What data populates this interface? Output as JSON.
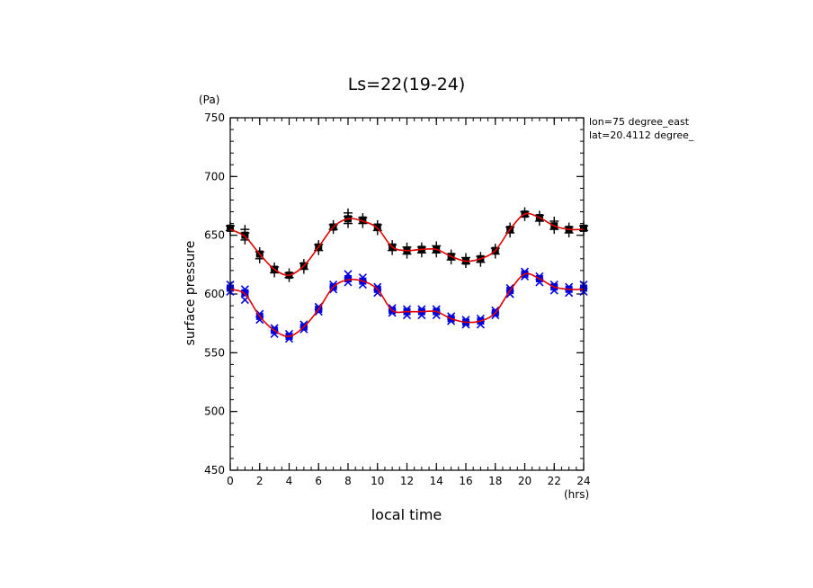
{
  "chart_data": {
    "type": "scatter",
    "title": "Ls=22(19-24)",
    "xlabel": "local time",
    "xunit": "(hrs)",
    "ylabel": "surface pressure",
    "yunit": "(Pa)",
    "xlim": [
      0,
      24
    ],
    "ylim": [
      450,
      750
    ],
    "x_major_ticks": [
      0,
      2,
      4,
      6,
      8,
      10,
      12,
      14,
      16,
      18,
      20,
      22,
      24
    ],
    "y_major_ticks": [
      450,
      500,
      550,
      600,
      650,
      700,
      750
    ],
    "annotations": [
      "lon=75 degree_east",
      "lat=20.4112 degree_"
    ],
    "grid": false,
    "colors": {
      "fit": "#e00000",
      "upper_markers": "#000000",
      "lower_markers": "#0000dd"
    },
    "series": [
      {
        "marker": "square",
        "color": "#000000",
        "x": [
          0,
          1,
          2,
          3,
          4,
          5,
          6,
          7,
          8,
          9,
          10,
          11,
          12,
          13,
          14,
          15,
          16,
          17,
          18,
          19,
          20,
          21,
          22,
          23,
          24
        ],
        "y": [
          656,
          650,
          634,
          621,
          616,
          624,
          640,
          657,
          664,
          663,
          657,
          640,
          637,
          638,
          638,
          632,
          628,
          630,
          637,
          655,
          668,
          665,
          658,
          655,
          656
        ]
      },
      {
        "marker": "plus",
        "color": "#000000",
        "x": [
          0,
          0,
          1,
          1,
          1,
          2,
          2,
          3,
          3,
          4,
          4,
          5,
          5,
          6,
          6,
          7,
          7,
          8,
          8,
          8,
          9,
          9,
          10,
          10,
          11,
          11,
          12,
          12,
          13,
          13,
          14,
          14,
          15,
          15,
          16,
          16,
          17,
          17,
          18,
          18,
          19,
          19,
          20,
          20,
          21,
          21,
          22,
          22,
          23,
          23,
          24,
          24
        ],
        "y": [
          658,
          654,
          655,
          646,
          652,
          636,
          630,
          623,
          618,
          618,
          614,
          626,
          621,
          642,
          637,
          659,
          655,
          669,
          660,
          666,
          665,
          660,
          659,
          654,
          642,
          637,
          640,
          634,
          640,
          635,
          641,
          635,
          634,
          629,
          631,
          626,
          632,
          627,
          639,
          634,
          657,
          652,
          670,
          666,
          667,
          662,
          662,
          655,
          657,
          652,
          658,
          654
        ]
      },
      {
        "marker": "square",
        "color": "#0000dd",
        "x": [
          0,
          1,
          2,
          3,
          4,
          5,
          6,
          7,
          8,
          9,
          10,
          11,
          12,
          13,
          14,
          15,
          16,
          17,
          18,
          19,
          20,
          21,
          22,
          23,
          24
        ],
        "y": [
          605,
          601,
          581,
          569,
          564,
          572,
          587,
          606,
          613,
          611,
          604,
          586,
          585,
          585,
          585,
          579,
          576,
          577,
          584,
          603,
          617,
          613,
          606,
          604,
          605
        ]
      },
      {
        "marker": "cross",
        "color": "#0000dd",
        "x": [
          0,
          0,
          1,
          1,
          1,
          2,
          2,
          3,
          3,
          4,
          4,
          5,
          5,
          6,
          6,
          7,
          7,
          8,
          8,
          9,
          9,
          10,
          10,
          11,
          11,
          12,
          12,
          13,
          13,
          14,
          14,
          15,
          15,
          16,
          16,
          17,
          17,
          18,
          18,
          19,
          19,
          20,
          20,
          21,
          21,
          22,
          22,
          23,
          23,
          24,
          24
        ],
        "y": [
          608,
          602,
          604,
          595,
          600,
          583,
          578,
          571,
          566,
          566,
          562,
          574,
          570,
          589,
          585,
          608,
          604,
          617,
          610,
          614,
          608,
          606,
          601,
          588,
          584,
          587,
          582,
          587,
          582,
          587,
          582,
          581,
          577,
          578,
          574,
          579,
          574,
          586,
          582,
          605,
          600,
          619,
          615,
          615,
          610,
          608,
          603,
          606,
          601,
          608,
          602
        ]
      },
      {
        "marker": "line",
        "color": "#e00000",
        "x": [
          0,
          1,
          2,
          3,
          4,
          5,
          6,
          7,
          8,
          9,
          10,
          11,
          12,
          13,
          14,
          15,
          16,
          17,
          18,
          19,
          20,
          21,
          22,
          23,
          24
        ],
        "y": [
          655,
          649,
          634,
          621,
          616,
          624,
          640,
          657,
          664,
          662,
          656,
          640,
          637,
          638,
          638,
          632,
          628,
          630,
          637,
          655,
          668,
          665,
          658,
          655,
          655
        ]
      },
      {
        "marker": "line",
        "color": "#e00000",
        "x": [
          0,
          1,
          2,
          3,
          4,
          5,
          6,
          7,
          8,
          9,
          10,
          11,
          12,
          13,
          14,
          15,
          16,
          17,
          18,
          19,
          20,
          21,
          22,
          23,
          24
        ],
        "y": [
          604,
          600,
          581,
          569,
          564,
          572,
          587,
          606,
          612,
          611,
          604,
          586,
          585,
          585,
          585,
          579,
          576,
          577,
          584,
          603,
          617,
          613,
          606,
          604,
          604
        ]
      }
    ]
  }
}
